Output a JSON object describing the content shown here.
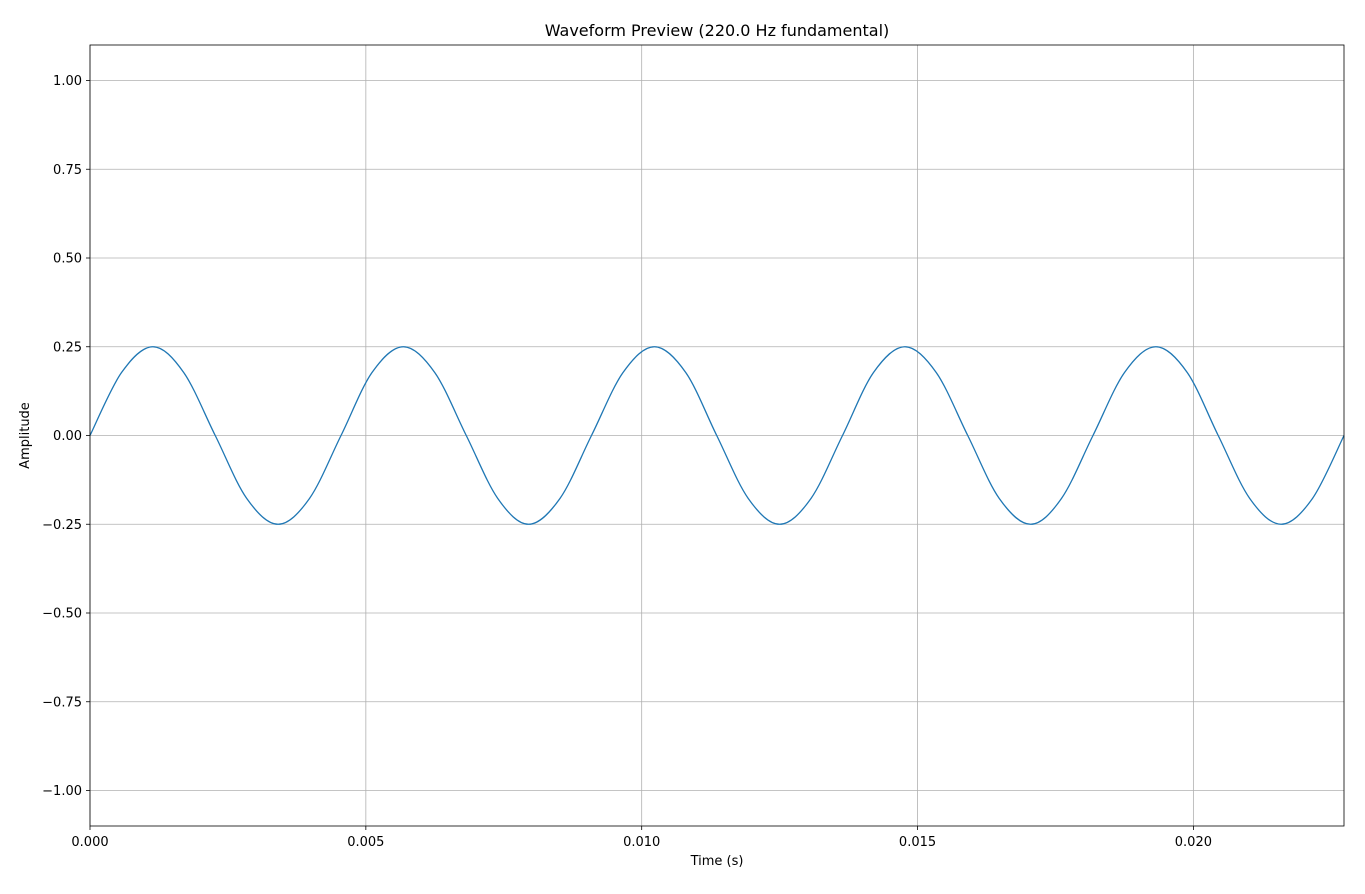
{
  "chart_data": {
    "type": "line",
    "title": "Waveform Preview (220.0 Hz fundamental)",
    "xlabel": "Time (s)",
    "ylabel": "Amplitude",
    "xlim": [
      0,
      0.02273
    ],
    "ylim": [
      -1.1,
      1.1
    ],
    "grid": true,
    "line_color": "#1f77b4",
    "x_ticks": [
      {
        "value": 0.0,
        "label": "0.000"
      },
      {
        "value": 0.005,
        "label": "0.005"
      },
      {
        "value": 0.01,
        "label": "0.010"
      },
      {
        "value": 0.015,
        "label": "0.015"
      },
      {
        "value": 0.02,
        "label": "0.020"
      }
    ],
    "y_ticks": [
      {
        "value": 1.0,
        "label": "1.00"
      },
      {
        "value": 0.75,
        "label": "0.75"
      },
      {
        "value": 0.5,
        "label": "0.50"
      },
      {
        "value": 0.25,
        "label": "0.25"
      },
      {
        "value": 0.0,
        "label": "0.00"
      },
      {
        "value": -0.25,
        "label": "−0.25"
      },
      {
        "value": -0.5,
        "label": "−0.50"
      },
      {
        "value": -0.75,
        "label": "−0.75"
      },
      {
        "value": -1.0,
        "label": "−1.00"
      }
    ],
    "series": [
      {
        "x": [
          0.0,
          0.00057,
          0.00114,
          0.0017,
          0.00227,
          0.00284,
          0.00341,
          0.00398,
          0.00455,
          0.00511,
          0.00568,
          0.00625,
          0.00682,
          0.00739,
          0.00795,
          0.00852,
          0.00909,
          0.00966,
          0.01023,
          0.0108,
          0.01136,
          0.01193,
          0.0125,
          0.01307,
          0.01364,
          0.0142,
          0.01477,
          0.01534,
          0.01591,
          0.01648,
          0.01705,
          0.01761,
          0.01818,
          0.01875,
          0.01932,
          0.01989,
          0.02045,
          0.02102,
          0.02159,
          0.02216,
          0.02273
        ],
        "y": [
          0.0,
          0.177,
          0.25,
          0.177,
          0.0,
          -0.177,
          -0.25,
          -0.177,
          0.0,
          0.177,
          0.25,
          0.177,
          0.0,
          -0.177,
          -0.25,
          -0.177,
          0.0,
          0.177,
          0.25,
          0.177,
          0.0,
          -0.177,
          -0.25,
          -0.177,
          0.0,
          0.177,
          0.25,
          0.177,
          0.0,
          -0.177,
          -0.25,
          -0.177,
          0.0,
          0.177,
          0.25,
          0.177,
          0.0,
          -0.177,
          -0.25,
          -0.177,
          0.0
        ]
      }
    ]
  }
}
